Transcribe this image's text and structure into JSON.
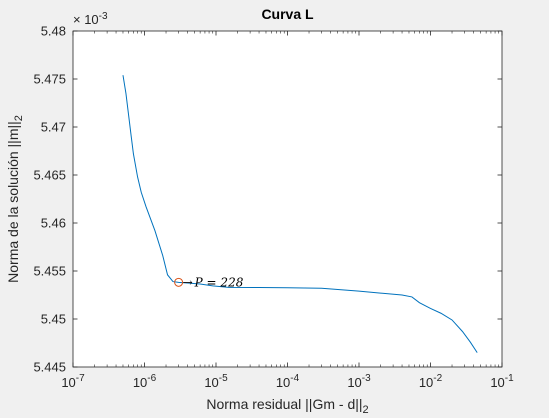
{
  "chart_data": {
    "type": "line",
    "title": "Curva L",
    "xlabel": "Norma residual ||Gm - d||",
    "xlabel_sub": "2",
    "ylabel": "Norma de la solución ||m||",
    "ylabel_sub": "2",
    "x_scale": "log",
    "xlim": [
      1e-07,
      0.1
    ],
    "ylim": [
      5.445,
      5.48
    ],
    "y_multiplier_base": "× 10",
    "y_multiplier_exp": "-3",
    "x_ticks": [
      {
        "value": 1e-07,
        "base": "10",
        "exp": "-7"
      },
      {
        "value": 1e-06,
        "base": "10",
        "exp": "-6"
      },
      {
        "value": 1e-05,
        "base": "10",
        "exp": "-5"
      },
      {
        "value": 0.0001,
        "base": "10",
        "exp": "-4"
      },
      {
        "value": 0.001,
        "base": "10",
        "exp": "-3"
      },
      {
        "value": 0.01,
        "base": "10",
        "exp": "-2"
      },
      {
        "value": 0.1,
        "base": "10",
        "exp": "-1"
      }
    ],
    "y_ticks": [
      {
        "value": 5.445,
        "label": "5.445"
      },
      {
        "value": 5.45,
        "label": "5.45"
      },
      {
        "value": 5.455,
        "label": "5.455"
      },
      {
        "value": 5.46,
        "label": "5.46"
      },
      {
        "value": 5.465,
        "label": "5.465"
      },
      {
        "value": 5.47,
        "label": "5.47"
      },
      {
        "value": 5.475,
        "label": "5.475"
      },
      {
        "value": 5.48,
        "label": "5.48"
      }
    ],
    "grid": false,
    "series": [
      {
        "color": "#0072bd",
        "x": [
          5e-07,
          5.5e-07,
          6e-07,
          6.5e-07,
          7e-07,
          8e-07,
          9e-07,
          1.05e-06,
          1.4e-06,
          1.8e-06,
          2.1e-06,
          2.5e-06,
          3e-06,
          4e-06,
          6e-06,
          9e-06,
          1.5e-05,
          4e-05,
          0.0001,
          0.0003,
          0.001,
          0.002,
          0.004,
          0.0055,
          0.007,
          0.01,
          0.014,
          0.02,
          0.028,
          0.036,
          0.045
        ],
        "y": [
          5.4754,
          5.4735,
          5.4712,
          5.4691,
          5.4672,
          5.4648,
          5.4632,
          5.4617,
          5.4592,
          5.4566,
          5.4546,
          5.4539,
          5.45382,
          5.45375,
          5.45365,
          5.45345,
          5.4533,
          5.45328,
          5.45325,
          5.4532,
          5.4529,
          5.4527,
          5.4525,
          5.4523,
          5.4517,
          5.4511,
          5.4506,
          5.4499,
          5.4487,
          5.4476,
          5.4465
        ]
      }
    ],
    "marker": {
      "x": 3e-06,
      "y": 5.45382,
      "shape": "circle",
      "color": "#d95319"
    },
    "annotation": {
      "arrow": "→",
      "text": "P = 228"
    }
  }
}
